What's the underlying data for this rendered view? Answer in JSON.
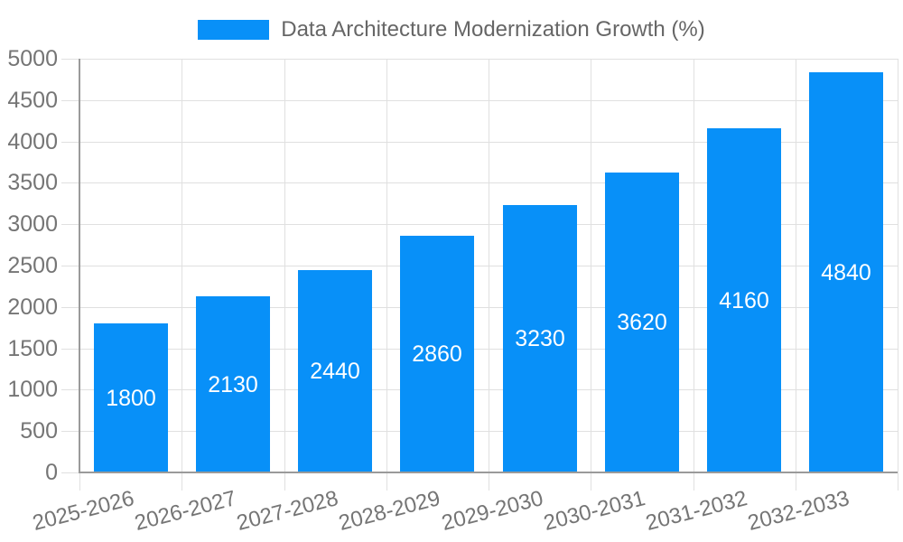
{
  "legend": {
    "label": "Data Architecture Modernization Growth (%)"
  },
  "chart_data": {
    "type": "bar",
    "title": "Data Architecture Modernization Growth (%)",
    "legend_position": "top",
    "categories": [
      "2025-2026",
      "2026-2027",
      "2027-2028",
      "2028-2029",
      "2029-2030",
      "2030-2031",
      "2031-2032",
      "2032-2033"
    ],
    "series": [
      {
        "name": "Data Architecture Modernization Growth (%)",
        "color": "#0890f8",
        "values": [
          1800,
          2130,
          2440,
          2860,
          3230,
          3620,
          4160,
          4840
        ]
      }
    ],
    "value_labels": [
      "1800",
      "2130",
      "2440",
      "2860",
      "3230",
      "3620",
      "4160",
      "4840"
    ],
    "xlabel": "",
    "ylabel": "",
    "ylim": [
      0,
      5000
    ],
    "ytick_step": 500,
    "yticks": [
      "0",
      "500",
      "1000",
      "1500",
      "2000",
      "2500",
      "3000",
      "3500",
      "4000",
      "4500",
      "5000"
    ],
    "grid": true,
    "x_label_rotation_deg": -14.5
  },
  "colors": {
    "bar": "#0890f8",
    "grid": "#e0e0e0",
    "axis": "#9a9a9a",
    "tick_label": "#757575",
    "title": "#666666",
    "value_label": "#ffffff",
    "background": "#ffffff"
  }
}
